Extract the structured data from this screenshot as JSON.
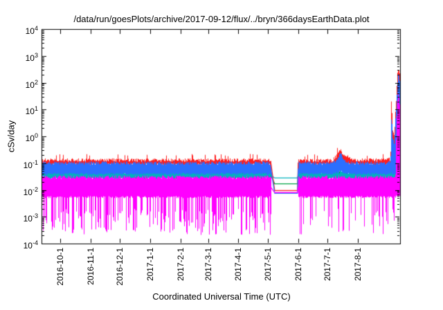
{
  "chart_data": {
    "type": "line",
    "title": "/data/run/goesPlots/archive/2017-09-12/flux/../bryn/366daysEarthData.plot",
    "xlabel": "Coordinated Universal Time (UTC)",
    "ylabel": "cSv/day",
    "y_scale": "log10",
    "ylim": [
      0.0001,
      10000
    ],
    "y_tick_mantissa": "10",
    "y_tick_exponents": [
      4,
      3,
      2,
      1,
      0,
      -1,
      -2,
      -3,
      -4
    ],
    "x_axis": {
      "range_days": 366,
      "ticks": [
        {
          "day": 19,
          "label": "2016-10-1"
        },
        {
          "day": 50,
          "label": "2016-11-1"
        },
        {
          "day": 80,
          "label": "2016-12-1"
        },
        {
          "day": 111,
          "label": "2017-1-1"
        },
        {
          "day": 142,
          "label": "2017-2-1"
        },
        {
          "day": 170,
          "label": "2017-3-1"
        },
        {
          "day": 201,
          "label": "2017-4-1"
        },
        {
          "day": 231,
          "label": "2017-5-1"
        },
        {
          "day": 262,
          "label": "2017-6-1"
        },
        {
          "day": 292,
          "label": "2017-7-1"
        },
        {
          "day": 323,
          "label": "2017-8-1"
        }
      ]
    },
    "gap": {
      "start_day": 234,
      "end_day": 262
    },
    "series": [
      {
        "name": "green",
        "color": "#00a545",
        "gap_value": 0.017,
        "keypoints": [
          [
            0,
            0.028,
            0.045
          ],
          [
            234,
            0.028,
            0.045
          ],
          [
            262,
            0.028,
            0.045
          ],
          [
            362,
            0.028,
            0.045
          ],
          [
            363,
            0.03,
            1.0
          ],
          [
            364,
            0.03,
            2.5
          ],
          [
            365,
            0.03,
            1.5
          ],
          [
            366,
            0.03,
            0.6
          ]
        ]
      },
      {
        "name": "cyan",
        "color": "#00b2bd",
        "gap_value": 0.028,
        "keypoints": [
          [
            0,
            0.027,
            0.048
          ],
          [
            234,
            0.027,
            0.048
          ],
          [
            262,
            0.027,
            0.048
          ],
          [
            362,
            0.027,
            0.048
          ],
          [
            363,
            0.028,
            0.5
          ],
          [
            364,
            0.028,
            1.2
          ],
          [
            365,
            0.028,
            0.8
          ],
          [
            366,
            0.028,
            0.3
          ]
        ]
      },
      {
        "name": "red",
        "color": "#ff1f1f",
        "gap_value": 0.0095,
        "tip_prob": 0.05,
        "tip_factor": 1.5,
        "keypoints": [
          [
            0,
            0.09,
            0.13
          ],
          [
            234,
            0.09,
            0.13
          ],
          [
            262,
            0.09,
            0.125
          ],
          [
            297,
            0.09,
            0.125
          ],
          [
            302,
            0.1,
            0.22
          ],
          [
            305,
            0.11,
            0.32
          ],
          [
            308,
            0.1,
            0.2
          ],
          [
            311,
            0.09,
            0.16
          ],
          [
            313,
            0.09,
            0.18
          ],
          [
            316,
            0.09,
            0.13
          ],
          [
            350,
            0.09,
            0.13
          ],
          [
            356,
            0.09,
            0.14
          ],
          [
            357,
            0.1,
            55
          ],
          [
            358,
            0.09,
            1.5
          ],
          [
            360,
            0.09,
            1.0
          ],
          [
            361,
            0.1,
            8
          ],
          [
            362,
            0.1,
            30
          ],
          [
            363,
            0.12,
            180
          ],
          [
            364,
            0.12,
            380
          ],
          [
            365,
            0.12,
            260
          ],
          [
            366,
            0.12,
            100
          ]
        ]
      },
      {
        "name": "blue",
        "color": "#2b6fff",
        "gap_value": 0.0075,
        "keypoints": [
          [
            0,
            0.04,
            0.1
          ],
          [
            234,
            0.04,
            0.1
          ],
          [
            262,
            0.04,
            0.1
          ],
          [
            297,
            0.04,
            0.1
          ],
          [
            302,
            0.045,
            0.15
          ],
          [
            305,
            0.05,
            0.22
          ],
          [
            308,
            0.045,
            0.14
          ],
          [
            311,
            0.04,
            0.11
          ],
          [
            316,
            0.04,
            0.1
          ],
          [
            350,
            0.04,
            0.1
          ],
          [
            356,
            0.04,
            0.105
          ],
          [
            357,
            0.045,
            9
          ],
          [
            358,
            0.04,
            0.8
          ],
          [
            360,
            0.04,
            0.5
          ],
          [
            361,
            0.045,
            4
          ],
          [
            362,
            0.05,
            15
          ],
          [
            363,
            0.05,
            90
          ],
          [
            364,
            0.05,
            210
          ],
          [
            365,
            0.05,
            140
          ],
          [
            366,
            0.05,
            60
          ]
        ]
      },
      {
        "name": "magenta",
        "color": "#ff00ff",
        "gap_value": 0.008,
        "spikes": {
          "pre_gap_prob": 0.5,
          "post_gap_prob": 0.25,
          "depth_exp_min": 2.7,
          "depth_exp_max": 3.7
        },
        "keypoints": [
          [
            0,
            0.0055,
            0.03
          ],
          [
            234,
            0.0055,
            0.03
          ],
          [
            262,
            0.0055,
            0.03
          ],
          [
            361,
            0.0055,
            0.03
          ],
          [
            362,
            0.006,
            2
          ],
          [
            363,
            0.006,
            18
          ],
          [
            364,
            0.006,
            45
          ],
          [
            365,
            0.006,
            22
          ],
          [
            366,
            0.006,
            6
          ]
        ]
      }
    ]
  }
}
